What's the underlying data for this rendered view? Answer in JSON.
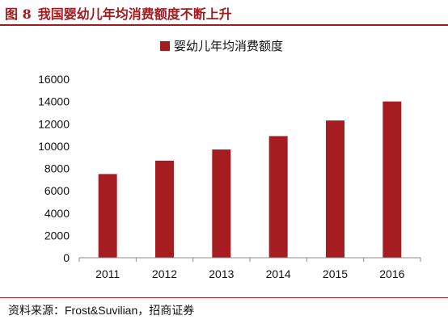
{
  "figure": {
    "number": "图 8",
    "title": "我国婴幼儿年均消费额度不断上升"
  },
  "colors": {
    "accent": "#a31a1e",
    "bar": "#a51d21",
    "axis": "#8c8c8c",
    "text": "#111111"
  },
  "chart_data": {
    "type": "bar",
    "title": "",
    "xlabel": "",
    "ylabel": "",
    "categories": [
      "2011",
      "2012",
      "2013",
      "2014",
      "2015",
      "2016"
    ],
    "series": [
      {
        "name": "婴幼儿年均消费额度",
        "values": [
          7500,
          8700,
          9700,
          10900,
          12300,
          14000
        ]
      }
    ],
    "ylim": [
      0,
      16000
    ],
    "yticks": [
      "0",
      "2000",
      "4000",
      "6000",
      "8000",
      "10000",
      "12000",
      "14000",
      "16000"
    ],
    "legend_position": "top-center",
    "grid": false
  },
  "source": {
    "label": "资料来源：",
    "text": "Frost&Suvilian，招商证券"
  }
}
